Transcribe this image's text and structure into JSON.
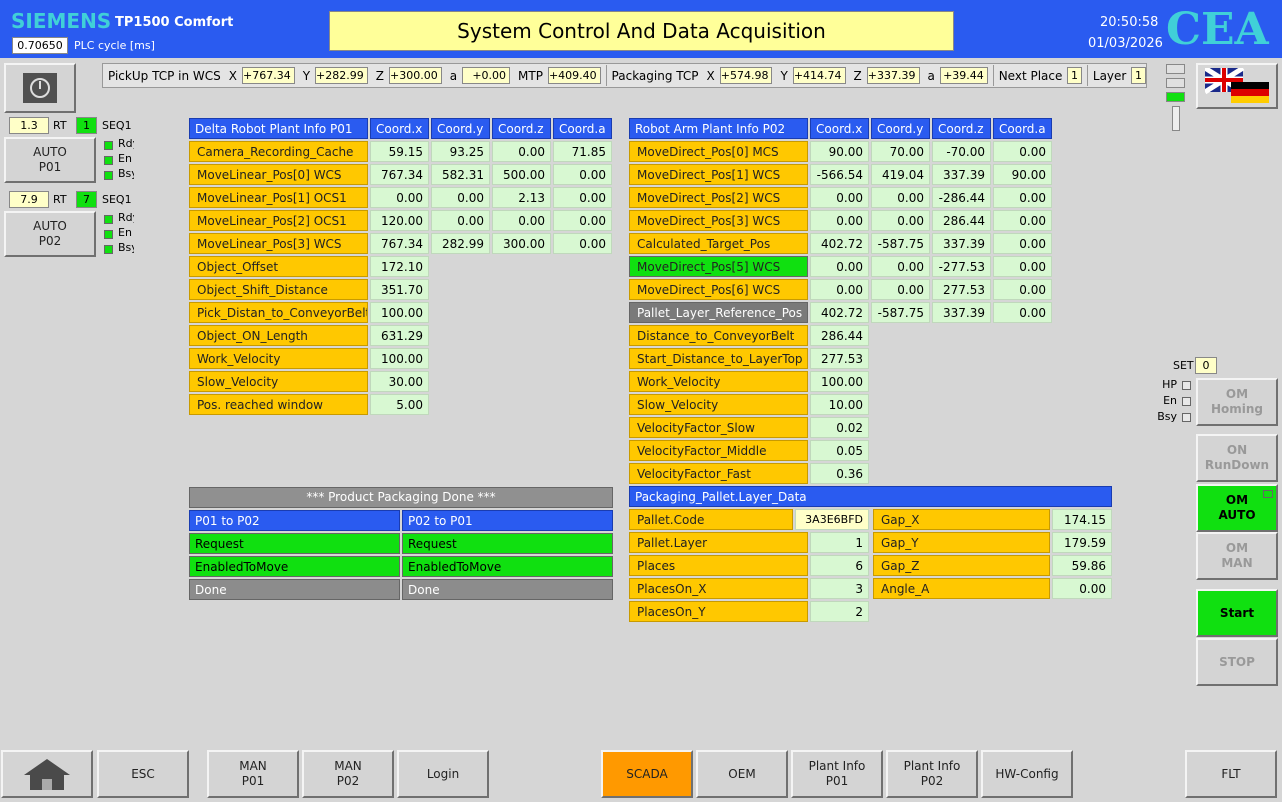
{
  "header": {
    "brand": "SIEMENS",
    "model": "TP1500 Comfort",
    "cycle": "0.70650",
    "cycle_label": "PLC cycle [ms]",
    "title": "System Control And Data Acquisition",
    "time": "20:50:58",
    "date": "01/03/2026",
    "logo": "CEA"
  },
  "tcp": {
    "groups": [
      {
        "title": "PickUp TCP in WCS",
        "fields": [
          {
            "name": "X",
            "value": "+767.34"
          },
          {
            "name": "Y",
            "value": "+282.99"
          },
          {
            "name": "Z",
            "value": "+300.00"
          },
          {
            "name": "a",
            "value": "+0.00"
          },
          {
            "name": "MTP",
            "value": "+409.40"
          }
        ]
      },
      {
        "title": "Packaging TCP",
        "fields": [
          {
            "name": "X",
            "value": "+574.98"
          },
          {
            "name": "Y",
            "value": "+414.74"
          },
          {
            "name": "Z",
            "value": "+337.39"
          },
          {
            "name": "a",
            "value": "+39.44"
          }
        ]
      },
      {
        "title": "Next Place",
        "fields": [
          {
            "name": "",
            "value": "1"
          }
        ]
      },
      {
        "title": "Layer",
        "fields": [
          {
            "name": "",
            "value": "1"
          }
        ]
      }
    ]
  },
  "stations": [
    {
      "value": "1.3",
      "rt": "RT",
      "seq_no": "1",
      "seq": "SEQ1",
      "button": [
        "AUTO",
        "P01"
      ],
      "leds": [
        "Rdy",
        "En",
        "Bsy"
      ]
    },
    {
      "value": "7.9",
      "rt": "RT",
      "seq_no": "7",
      "seq": "SEQ1",
      "button": [
        "AUTO",
        "P02"
      ],
      "leds": [
        "Rdy",
        "En",
        "Bsy"
      ]
    }
  ],
  "delta_table": {
    "header": [
      "Delta Robot Plant Info P01",
      "Coord.x",
      "Coord.y",
      "Coord.z",
      "Coord.a"
    ],
    "rows": [
      {
        "label": "Camera_Recording_Cache",
        "values": [
          "59.15",
          "93.25",
          "0.00",
          "71.85"
        ]
      },
      {
        "label": "MoveLinear_Pos[0] WCS",
        "values": [
          "767.34",
          "582.31",
          "500.00",
          "0.00"
        ]
      },
      {
        "label": "MoveLinear_Pos[1] OCS1",
        "values": [
          "0.00",
          "0.00",
          "2.13",
          "0.00"
        ]
      },
      {
        "label": "MoveLinear_Pos[2] OCS1",
        "values": [
          "120.00",
          "0.00",
          "0.00",
          "0.00"
        ]
      },
      {
        "label": "MoveLinear_Pos[3] WCS",
        "values": [
          "767.34",
          "282.99",
          "300.00",
          "0.00"
        ]
      },
      {
        "label": "Object_Offset",
        "values": [
          "172.10"
        ]
      },
      {
        "label": "Object_Shift_Distance",
        "values": [
          "351.70"
        ]
      },
      {
        "label": "Pick_Distan_to_ConveyorBelt",
        "values": [
          "100.00"
        ]
      },
      {
        "label": "Object_ON_Length",
        "values": [
          "631.29"
        ]
      },
      {
        "label": "Work_Velocity",
        "values": [
          "100.00"
        ]
      },
      {
        "label": "Slow_Velocity",
        "values": [
          "30.00"
        ]
      },
      {
        "label": "Pos. reached window",
        "values": [
          "5.00"
        ]
      }
    ]
  },
  "arm_table": {
    "header": [
      "Robot Arm Plant Info P02",
      "Coord.x",
      "Coord.y",
      "Coord.z",
      "Coord.a"
    ],
    "rows": [
      {
        "label": "MoveDirect_Pos[0] MCS",
        "values": [
          "90.00",
          "70.00",
          "-70.00",
          "0.00"
        ]
      },
      {
        "label": "MoveDirect_Pos[1] WCS",
        "values": [
          "-566.54",
          "419.04",
          "337.39",
          "90.00"
        ]
      },
      {
        "label": "MoveDirect_Pos[2] WCS",
        "values": [
          "0.00",
          "0.00",
          "-286.44",
          "0.00"
        ]
      },
      {
        "label": "MoveDirect_Pos[3] WCS",
        "values": [
          "0.00",
          "0.00",
          "286.44",
          "0.00"
        ]
      },
      {
        "label": "Calculated_Target_Pos",
        "values": [
          "402.72",
          "-587.75",
          "337.39",
          "0.00"
        ]
      },
      {
        "label": "MoveDirect_Pos[5] WCS",
        "values": [
          "0.00",
          "0.00",
          "-277.53",
          "0.00"
        ],
        "color": "#10e010"
      },
      {
        "label": "MoveDirect_Pos[6] WCS",
        "values": [
          "0.00",
          "0.00",
          "277.53",
          "0.00"
        ]
      },
      {
        "label": "Pallet_Layer_Reference_Pos",
        "values": [
          "402.72",
          "-587.75",
          "337.39",
          "0.00"
        ],
        "color": "#7a7a7a"
      },
      {
        "label": "Distance_to_ConveyorBelt",
        "values": [
          "286.44"
        ]
      },
      {
        "label": "Start_Distance_to_LayerTop",
        "values": [
          "277.53"
        ]
      },
      {
        "label": "Work_Velocity",
        "values": [
          "100.00"
        ]
      },
      {
        "label": "Slow_Velocity",
        "values": [
          "10.00"
        ]
      },
      {
        "label": "VelocityFactor_Slow",
        "values": [
          "0.02"
        ]
      },
      {
        "label": "VelocityFactor_Middle",
        "values": [
          "0.05"
        ]
      },
      {
        "label": "VelocityFactor_Fast",
        "values": [
          "0.36"
        ]
      }
    ]
  },
  "packaging": {
    "title": "*** Product Packaging Done ***",
    "columns": [
      "P01 to P02",
      "P02 to P01"
    ],
    "rows": [
      [
        "Request",
        "Request"
      ],
      [
        "EnabledToMove",
        "EnabledToMove"
      ],
      [
        "Done",
        "Done"
      ]
    ]
  },
  "pallet": {
    "title": "Packaging_Pallet.Layer_Data",
    "left": [
      [
        "Pallet.Code",
        "3A3E6BFD"
      ],
      [
        "Pallet.Layer",
        "1"
      ],
      [
        "Places",
        "6"
      ],
      [
        "PlacesOn_X",
        "3"
      ],
      [
        "PlacesOn_Y",
        "2"
      ]
    ],
    "right": [
      [
        "Gap_X",
        "174.15"
      ],
      [
        "Gap_Y",
        "179.59"
      ],
      [
        "Gap_Z",
        "59.86"
      ],
      [
        "Angle_A",
        "0.00"
      ]
    ]
  },
  "mode": {
    "set_label": "SET",
    "set_value": "0",
    "leds": [
      "HP",
      "En",
      "Bsy"
    ],
    "buttons": [
      [
        "OM",
        "Homing"
      ],
      [
        "ON",
        "RunDown"
      ],
      [
        "OM",
        "AUTO"
      ],
      [
        "OM",
        "MAN"
      ],
      [
        "Start"
      ],
      [
        "STOP"
      ]
    ]
  },
  "nav": [
    "ESC",
    [
      "MAN",
      "P01"
    ],
    [
      "MAN",
      "P02"
    ],
    "Login",
    "SCADA",
    "OEM",
    [
      "Plant Info",
      "P01"
    ],
    [
      "Plant Info",
      "P02"
    ],
    "HW-Config",
    "FLT"
  ]
}
